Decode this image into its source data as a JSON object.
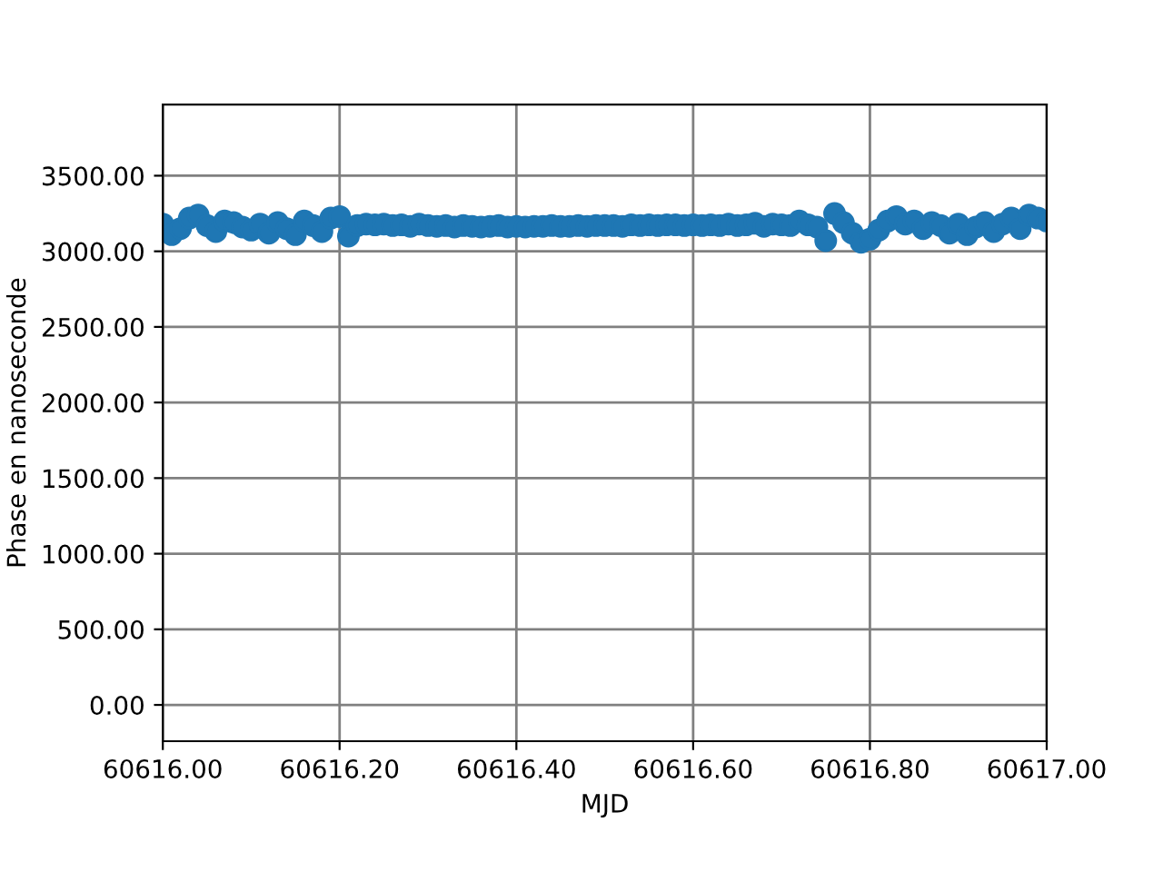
{
  "chart_data": {
    "type": "scatter",
    "xlabel": "MJD",
    "ylabel": "Phase en nanoseconde",
    "x": [
      60616.0,
      60616.01,
      60616.02,
      60616.03,
      60616.04,
      60616.05,
      60616.06,
      60616.07,
      60616.08,
      60616.09,
      60616.1,
      60616.11,
      60616.12,
      60616.13,
      60616.14,
      60616.15,
      60616.16,
      60616.17,
      60616.18,
      60616.19,
      60616.2,
      60616.21,
      60616.22,
      60616.23,
      60616.24,
      60616.25,
      60616.26,
      60616.27,
      60616.28,
      60616.29,
      60616.3,
      60616.31,
      60616.32,
      60616.33,
      60616.34,
      60616.35,
      60616.36,
      60616.37,
      60616.38,
      60616.39,
      60616.4,
      60616.41,
      60616.42,
      60616.43,
      60616.44,
      60616.45,
      60616.46,
      60616.47,
      60616.48,
      60616.49,
      60616.5,
      60616.51,
      60616.52,
      60616.53,
      60616.54,
      60616.55,
      60616.56,
      60616.57,
      60616.58,
      60616.59,
      60616.6,
      60616.61,
      60616.62,
      60616.63,
      60616.64,
      60616.65,
      60616.66,
      60616.67,
      60616.68,
      60616.69,
      60616.7,
      60616.71,
      60616.72,
      60616.73,
      60616.74,
      60616.75,
      60616.76,
      60616.77,
      60616.78,
      60616.79,
      60616.8,
      60616.81,
      60616.82,
      60616.83,
      60616.84,
      60616.85,
      60616.86,
      60616.87,
      60616.88,
      60616.89,
      60616.9,
      60616.91,
      60616.92,
      60616.93,
      60616.94,
      60616.95,
      60616.96,
      60616.97,
      60616.98,
      60616.99,
      60617.0
    ],
    "values": [
      3180,
      3110,
      3150,
      3220,
      3240,
      3170,
      3130,
      3200,
      3190,
      3160,
      3140,
      3180,
      3120,
      3190,
      3150,
      3110,
      3200,
      3170,
      3130,
      3220,
      3230,
      3100,
      3170,
      3180,
      3175,
      3180,
      3170,
      3175,
      3165,
      3180,
      3170,
      3165,
      3170,
      3160,
      3170,
      3165,
      3160,
      3165,
      3170,
      3160,
      3165,
      3160,
      3165,
      3165,
      3170,
      3165,
      3165,
      3170,
      3165,
      3170,
      3170,
      3170,
      3165,
      3175,
      3170,
      3175,
      3170,
      3175,
      3175,
      3170,
      3175,
      3170,
      3175,
      3170,
      3180,
      3170,
      3175,
      3185,
      3165,
      3180,
      3175,
      3170,
      3200,
      3175,
      3160,
      3070,
      3250,
      3190,
      3120,
      3060,
      3080,
      3140,
      3200,
      3230,
      3180,
      3200,
      3150,
      3190,
      3170,
      3120,
      3180,
      3110,
      3160,
      3190,
      3130,
      3180,
      3220,
      3150,
      3240,
      3220,
      3200
    ],
    "color": "#1f77b4",
    "marker": "circle",
    "xlim": [
      60616.0,
      60617.0
    ],
    "xticks": [
      {
        "value": 60616.0,
        "label": "60616.00"
      },
      {
        "value": 60616.2,
        "label": "60616.20"
      },
      {
        "value": 60616.4,
        "label": "60616.40"
      },
      {
        "value": 60616.6,
        "label": "60616.60"
      },
      {
        "value": 60616.8,
        "label": "60616.80"
      },
      {
        "value": 60617.0,
        "label": "60617.00"
      }
    ],
    "ylim": [
      -240,
      3970
    ],
    "yticks": [
      {
        "value": 0,
        "label": "0.00"
      },
      {
        "value": 500,
        "label": "500.00"
      },
      {
        "value": 1000,
        "label": "1000.00"
      },
      {
        "value": 1500,
        "label": "1500.00"
      },
      {
        "value": 2000,
        "label": "2000.00"
      },
      {
        "value": 2500,
        "label": "2500.00"
      },
      {
        "value": 3000,
        "label": "3000.00"
      },
      {
        "value": 3500,
        "label": "3500.00"
      }
    ],
    "grid": true
  }
}
